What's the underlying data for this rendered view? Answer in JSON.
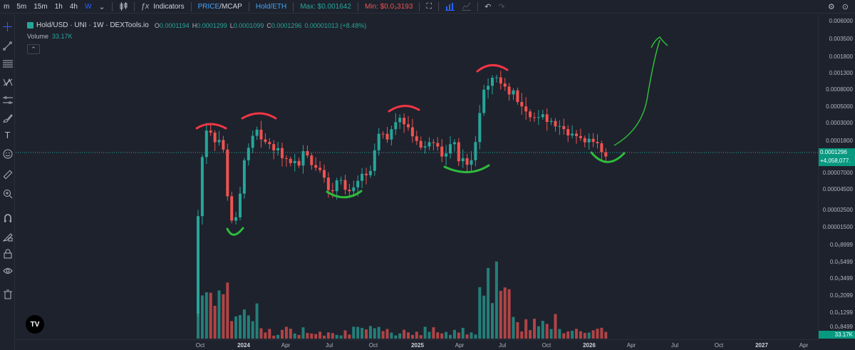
{
  "toolbar": {
    "intervals": [
      "m",
      "5m",
      "15m",
      "1h",
      "4h",
      "W"
    ],
    "active_interval": "W",
    "indicators_label": "Indicators",
    "price_label": "PRICE",
    "mcap_label": "/MCAP",
    "pair_label": "Hold/ETH",
    "max_label": "Max:",
    "max_value": "$0.001642",
    "min_label": "Min:",
    "min_value": "$0.0₃3193"
  },
  "legend": {
    "symbol": "Hold/USD · UNI · 1W · DEXTools.io",
    "open_key": "O",
    "open": "0.0001194",
    "high_key": "H",
    "high": "0.0001299",
    "low_key": "L",
    "low": "0.0001099",
    "close_key": "C",
    "close": "0.0001296",
    "change": "0.00001013 (+8.48%)",
    "volume_label": "Volume",
    "volume_value": "33.17K"
  },
  "price_axis": {
    "labels": [
      "0.006000",
      "0.003500",
      "0.001800",
      "0.001300",
      "0.0008000",
      "0.0005000",
      "0.0003000",
      "0.0001800",
      "0.00007000",
      "0.00004500",
      "0.00002500",
      "0.00001500",
      "0.0₅8999",
      "0.0₅5499",
      "0.0₅3499",
      "0.0₅2099",
      "0.0₅1299",
      "0.0₆8499"
    ]
  },
  "badges": {
    "last_price": "0.0001296",
    "countdown": "+4,058,077.",
    "volume": "33.17K"
  },
  "time_axis": {
    "labels": [
      "Oct",
      "2024",
      "Apr",
      "Jul",
      "Oct",
      "2025",
      "Apr",
      "Jul",
      "Oct",
      "2026",
      "Apr",
      "Jul",
      "Oct",
      "2027",
      "Apr"
    ]
  },
  "colors": {
    "up": "#26a69a",
    "down": "#ef5350",
    "annotation_red": "#f23645",
    "annotation_green": "#2ebd3b",
    "background": "#1e222d"
  },
  "icons": {
    "left": [
      "crosshair-icon",
      "trend-line-icon",
      "fib-icon",
      "pattern-icon",
      "measure-lines-icon",
      "brush-icon",
      "text-icon",
      "emoji-icon",
      "ruler-icon",
      "zoom-icon",
      "magnet-icon",
      "lock-drawing-icon",
      "lock-icon",
      "eye-icon",
      "trash-icon"
    ]
  }
}
